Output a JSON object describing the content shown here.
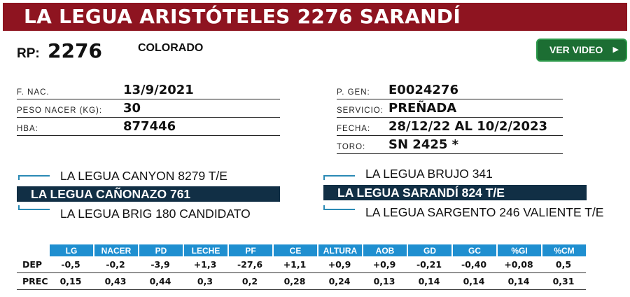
{
  "title": "LA LEGUA ARISTÓTELES 2276 SARANDÍ",
  "rp": {
    "label": "RP:",
    "value": "2276"
  },
  "color": "COLORADO",
  "video_button": {
    "label": "VER VIDEO",
    "icon": "play-icon"
  },
  "left_info": [
    {
      "label": "F. NAC.",
      "value": "13/9/2021"
    },
    {
      "label": "PESO NACER (KG):",
      "value": "30"
    },
    {
      "label": "HBA:",
      "value": "877446"
    }
  ],
  "right_info": [
    {
      "label": "P. GEN:",
      "value": "E0024276"
    },
    {
      "label": "SERVICIO:",
      "value": "PREÑADA"
    },
    {
      "label": "FECHA:",
      "value": "28/12/22 AL 10/2/2023"
    },
    {
      "label": "TORO:",
      "value": "SN 2425 *"
    }
  ],
  "pedigree": {
    "sire": {
      "top": "LA LEGUA CANYON 8279 T/E",
      "main": "LA LEGUA CAÑONAZO 761",
      "bottom": "LA LEGUA BRIG 180 CANDIDATO"
    },
    "dam": {
      "top": "LA LEGUA BRUJO 341",
      "main": "LA LEGUA SARANDÍ 824  T/E",
      "bottom": "LA LEGUA SARGENTO 246 VALIENTE T/E"
    }
  },
  "table": {
    "columns": [
      "LG",
      "NACER",
      "PD",
      "LECHE",
      "PF",
      "CE",
      "ALTURA",
      "AOB",
      "GD",
      "GC",
      "%GI",
      "%CM"
    ],
    "rows": [
      {
        "label": "DEP",
        "values": [
          "-0,5",
          "-0,2",
          "-3,9",
          "+1,3",
          "-27,6",
          "+1,1",
          "+0,9",
          "+0,9",
          "-0,21",
          "-0,40",
          "+0,08",
          "0,5"
        ]
      },
      {
        "label": "PREC",
        "values": [
          "0,15",
          "0,43",
          "0,44",
          "0,3",
          "0,2",
          "0,28",
          "0,24",
          "0,13",
          "0,14",
          "0,14",
          "0,14",
          "0,31"
        ]
      }
    ]
  },
  "colors": {
    "title_bar": "#8e1420",
    "video_button": "#1c6e33",
    "pedigree_highlight": "#112f45",
    "table_header": "#1f8fd0",
    "bracket": "#2b8ab5"
  }
}
